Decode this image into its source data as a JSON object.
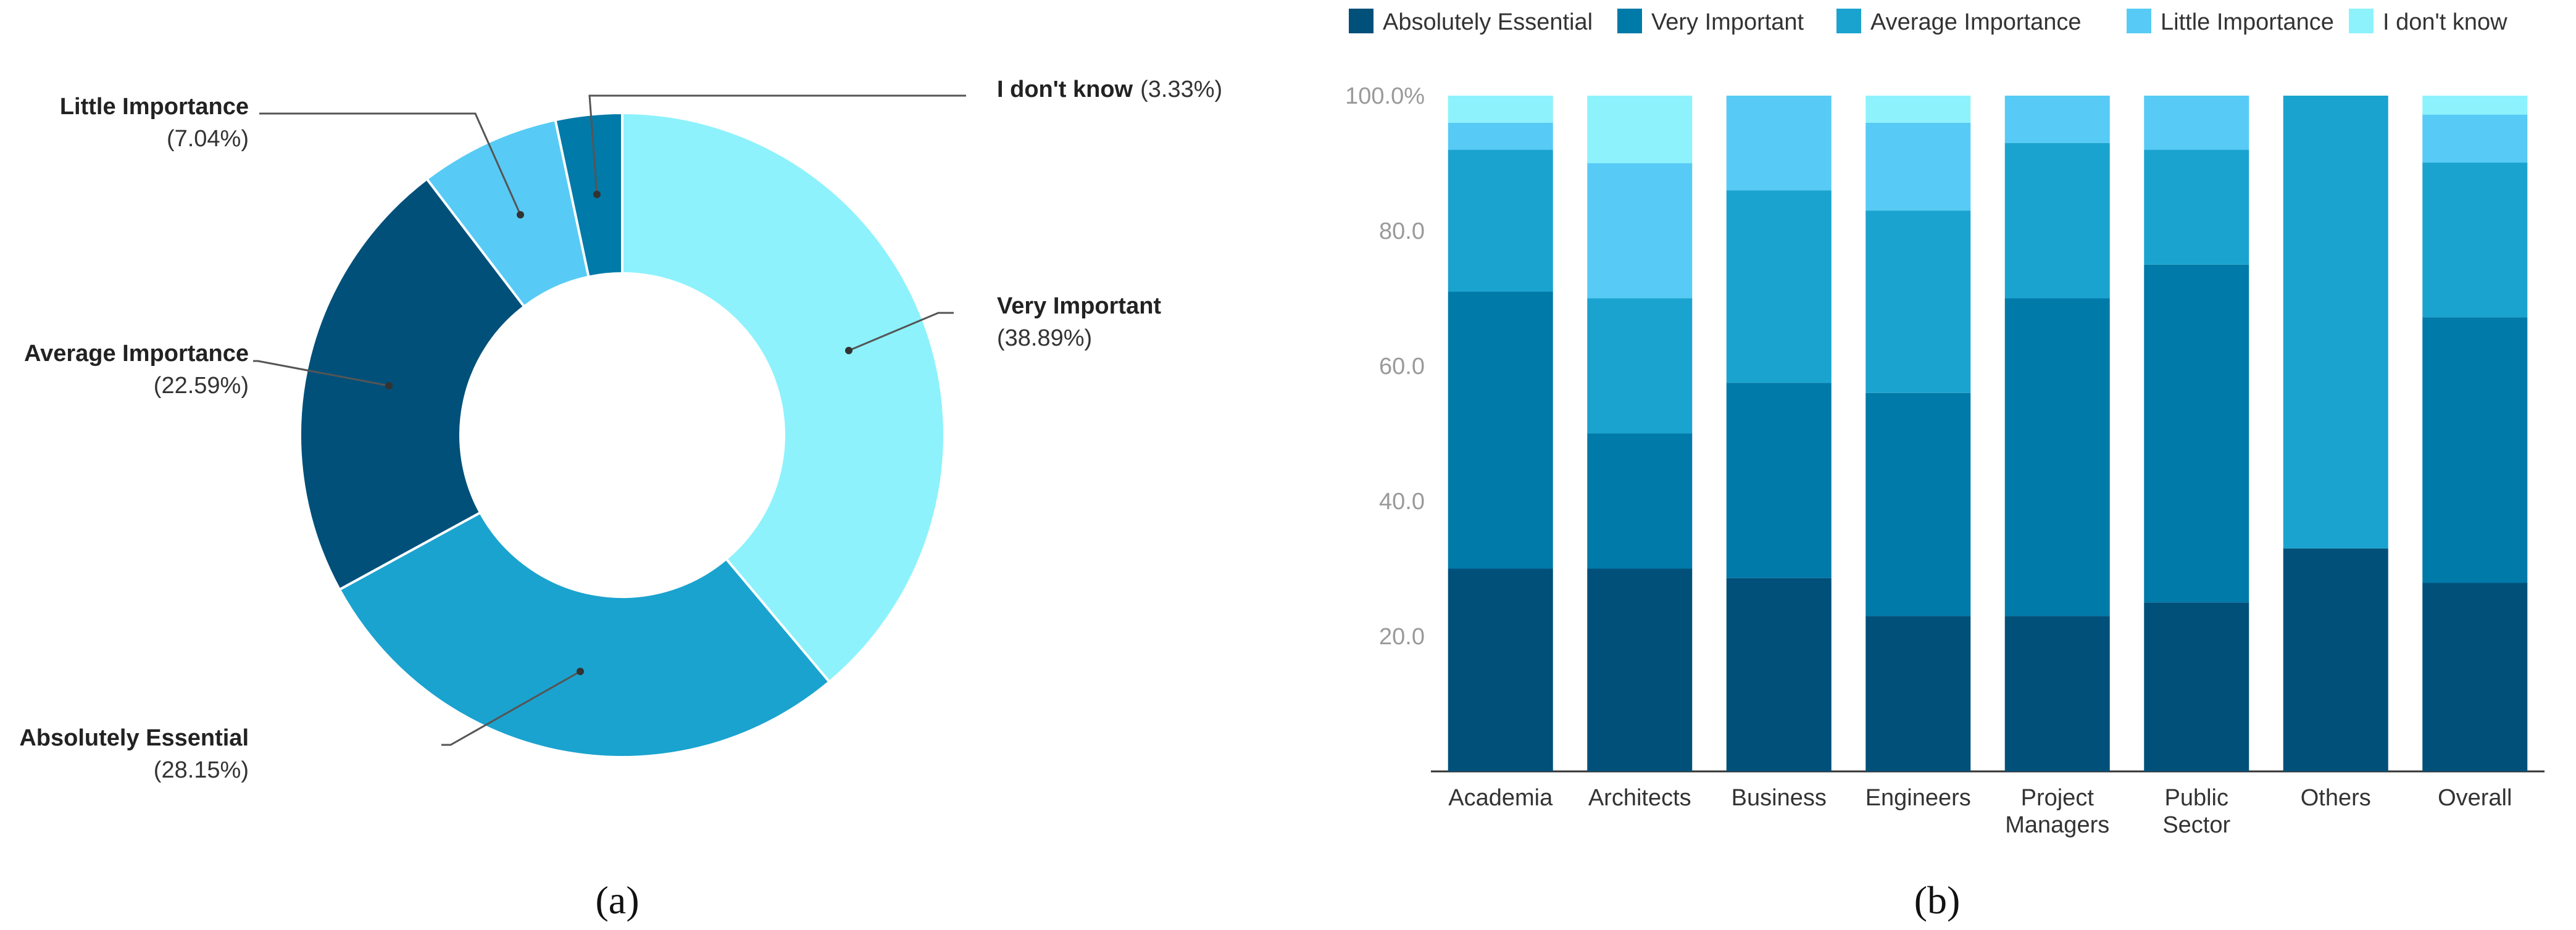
{
  "colors": {
    "absolutely_essential": "#00507a",
    "very_important": "#007aa8",
    "average_importance": "#1aa3cf",
    "little_importance": "#57cbf5",
    "dont_know": "#8df2fc"
  },
  "chart_data": [
    {
      "type": "pie",
      "variant": "donut",
      "caption": "(a)",
      "slices": [
        {
          "label": "Very Important",
          "value": 38.89,
          "value_label": "(38.89%)",
          "color_key": "dont_know_light"
        },
        {
          "label": "Absolutely Essential",
          "value": 28.15,
          "value_label": "(28.15%)"
        },
        {
          "label": "Average Importance",
          "value": 22.59,
          "value_label": "(22.59%)"
        },
        {
          "label": "Little Importance",
          "value": 7.04,
          "value_label": "(7.04%)"
        },
        {
          "label": "I don't know",
          "value": 3.33,
          "value_label": "(3.33%)"
        }
      ]
    },
    {
      "type": "bar",
      "stacked": true,
      "caption": "(b)",
      "categories": [
        [
          "Academia"
        ],
        [
          "Architects"
        ],
        [
          "Business"
        ],
        [
          "Engineers"
        ],
        [
          "Project",
          "Managers"
        ],
        [
          "Public",
          "Sector"
        ],
        [
          "Others"
        ],
        [
          "Overall"
        ]
      ],
      "series": [
        {
          "name": "Absolutely Essential",
          "values": [
            30,
            30,
            28.6,
            23,
            23,
            25,
            33,
            27.9
          ]
        },
        {
          "name": "Very Important",
          "values": [
            41,
            20,
            28.9,
            33,
            47,
            50,
            0,
            39.3
          ]
        },
        {
          "name": "Average Importance",
          "values": [
            21,
            20,
            28.5,
            27,
            23,
            17,
            67,
            22.9
          ]
        },
        {
          "name": "Little Importance",
          "values": [
            4,
            20,
            14,
            13,
            7,
            8,
            0,
            7.1
          ]
        },
        {
          "name": "I don't know",
          "values": [
            4,
            10,
            0,
            4,
            0,
            0,
            0,
            2.8
          ]
        }
      ],
      "ylim": [
        0,
        100
      ],
      "yticks": [
        "20.0",
        "40.0",
        "60.0",
        "80.0",
        "100.0%"
      ],
      "ytick_values": [
        20,
        40,
        60,
        80,
        100
      ],
      "legend_position": "top"
    }
  ]
}
